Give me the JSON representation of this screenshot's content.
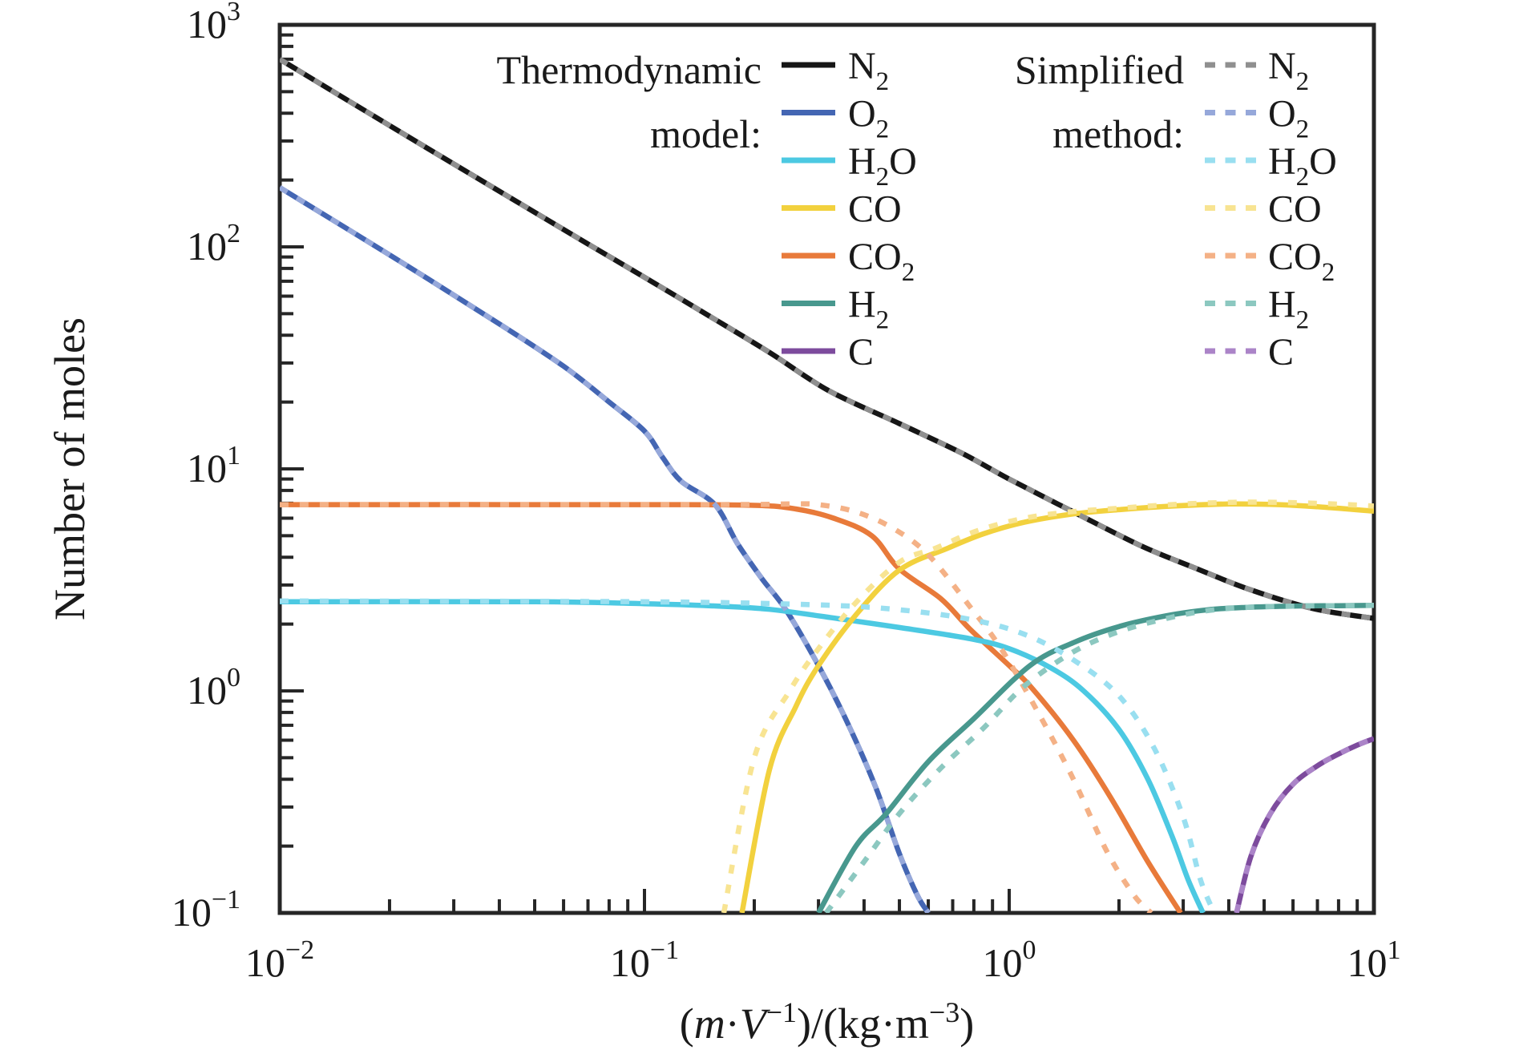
{
  "figure": {
    "background": "#ffffff",
    "axis_color": "#262626",
    "y_axis_title": "Number of moles",
    "x_axis_title_segments": [
      {
        "t": "(",
        "s": "u"
      },
      {
        "t": "m",
        "s": "i"
      },
      {
        "t": "·",
        "s": "u"
      },
      {
        "t": "V",
        "s": "i"
      },
      {
        "t": "−1",
        "s": "sup"
      },
      {
        "t": ")/(",
        "s": "u"
      },
      {
        "t": "kg·m",
        "s": "u"
      },
      {
        "t": "−3",
        "s": "sup"
      },
      {
        "t": ")",
        "s": "u"
      }
    ]
  },
  "legend": {
    "group1_title_line1": "Thermodynamic",
    "group1_title_line2": "model:",
    "group2_title_line1": "Simplified",
    "group2_title_line2": "method:"
  },
  "chart_data": {
    "type": "line",
    "x_scale": "log",
    "y_scale": "log",
    "xlim": [
      0.01,
      10
    ],
    "ylim": [
      0.1,
      1000
    ],
    "x_tick_base": "10",
    "x_tick_exponents": [
      "−2",
      "−1",
      "0",
      "1"
    ],
    "y_tick_base": "10",
    "y_tick_exponents": [
      "3",
      "2",
      "1",
      "0",
      "−1"
    ],
    "xlabel": "(m·V⁻¹)/(kg·m⁻³)",
    "ylabel": "Number of moles",
    "legend_groups": [
      "Thermodynamic model:",
      "Simplified method:"
    ],
    "species": [
      {
        "id": "N2",
        "parts": [
          {
            "t": "N"
          },
          {
            "t": "2",
            "sub": true
          }
        ],
        "solid_color": "#161616",
        "dotted_color": "#8f8f8f"
      },
      {
        "id": "O2",
        "parts": [
          {
            "t": "O"
          },
          {
            "t": "2",
            "sub": true
          }
        ],
        "solid_color": "#4466b3",
        "dotted_color": "#96a8da"
      },
      {
        "id": "H2O",
        "parts": [
          {
            "t": "H"
          },
          {
            "t": "2",
            "sub": true
          },
          {
            "t": "O"
          }
        ],
        "solid_color": "#4cc9e2",
        "dotted_color": "#99dff0"
      },
      {
        "id": "CO",
        "parts": [
          {
            "t": "CO"
          }
        ],
        "solid_color": "#f2d13e",
        "dotted_color": "#f8e492"
      },
      {
        "id": "CO2",
        "parts": [
          {
            "t": "CO"
          },
          {
            "t": "2",
            "sub": true
          }
        ],
        "solid_color": "#e87a3a",
        "dotted_color": "#f4b186"
      },
      {
        "id": "H2",
        "parts": [
          {
            "t": "H"
          },
          {
            "t": "2",
            "sub": true
          }
        ],
        "solid_color": "#48988e",
        "dotted_color": "#8cc8c0"
      },
      {
        "id": "C",
        "parts": [
          {
            "t": "C"
          }
        ],
        "solid_color": "#7d4b9d",
        "dotted_color": "#ab84c8"
      }
    ],
    "series": [
      {
        "species": "N2",
        "variant": "solid",
        "model": "Thermodynamic model",
        "points": [
          [
            0.01,
            700
          ],
          [
            0.02,
            352
          ],
          [
            0.04,
            178
          ],
          [
            0.07,
            103
          ],
          [
            0.1,
            73
          ],
          [
            0.15,
            49
          ],
          [
            0.22,
            33.5
          ],
          [
            0.32,
            22.5
          ],
          [
            0.5,
            16
          ],
          [
            0.74,
            11.8
          ],
          [
            1.0,
            9.0
          ],
          [
            1.5,
            6.4
          ],
          [
            2.3,
            4.5
          ],
          [
            3.2,
            3.6
          ],
          [
            4.6,
            2.85
          ],
          [
            6.8,
            2.35
          ],
          [
            10,
            2.12
          ]
        ]
      },
      {
        "species": "N2",
        "variant": "dotted",
        "model": "Simplified method",
        "points": [
          [
            0.01,
            700
          ],
          [
            0.02,
            352
          ],
          [
            0.04,
            178
          ],
          [
            0.07,
            103
          ],
          [
            0.1,
            73
          ],
          [
            0.15,
            49
          ],
          [
            0.22,
            33.5
          ],
          [
            0.32,
            22.5
          ],
          [
            0.5,
            16
          ],
          [
            0.74,
            11.8
          ],
          [
            1.0,
            9.0
          ],
          [
            1.5,
            6.4
          ],
          [
            2.3,
            4.5
          ],
          [
            3.2,
            3.6
          ],
          [
            4.6,
            2.85
          ],
          [
            6.8,
            2.35
          ],
          [
            10,
            2.12
          ]
        ]
      },
      {
        "species": "O2",
        "variant": "solid",
        "model": "Thermodynamic model",
        "points": [
          [
            0.01,
            185
          ],
          [
            0.02,
            92
          ],
          [
            0.04,
            45
          ],
          [
            0.06,
            29
          ],
          [
            0.08,
            20
          ],
          [
            0.1,
            14.8
          ],
          [
            0.112,
            11.3
          ],
          [
            0.126,
            8.8
          ],
          [
            0.156,
            6.9
          ],
          [
            0.18,
            4.6
          ],
          [
            0.21,
            3.2
          ],
          [
            0.245,
            2.3
          ],
          [
            0.3,
            1.3
          ],
          [
            0.36,
            0.72
          ],
          [
            0.43,
            0.37
          ],
          [
            0.5,
            0.185
          ],
          [
            0.56,
            0.12
          ],
          [
            0.6,
            0.1
          ]
        ]
      },
      {
        "species": "O2",
        "variant": "dotted",
        "model": "Simplified method",
        "points": [
          [
            0.01,
            185
          ],
          [
            0.02,
            92
          ],
          [
            0.04,
            45
          ],
          [
            0.06,
            29
          ],
          [
            0.08,
            20
          ],
          [
            0.1,
            14.8
          ],
          [
            0.112,
            11.3
          ],
          [
            0.126,
            8.8
          ],
          [
            0.156,
            6.9
          ],
          [
            0.18,
            4.6
          ],
          [
            0.21,
            3.2
          ],
          [
            0.245,
            2.3
          ],
          [
            0.3,
            1.3
          ],
          [
            0.36,
            0.72
          ],
          [
            0.43,
            0.37
          ],
          [
            0.5,
            0.185
          ],
          [
            0.56,
            0.12
          ],
          [
            0.6,
            0.1
          ]
        ]
      },
      {
        "species": "H2O",
        "variant": "solid",
        "model": "Thermodynamic model",
        "points": [
          [
            0.01,
            2.52
          ],
          [
            0.05,
            2.52
          ],
          [
            0.1,
            2.47
          ],
          [
            0.15,
            2.42
          ],
          [
            0.22,
            2.33
          ],
          [
            0.35,
            2.1
          ],
          [
            0.5,
            1.93
          ],
          [
            0.78,
            1.72
          ],
          [
            1.0,
            1.55
          ],
          [
            1.3,
            1.27
          ],
          [
            1.6,
            1.0
          ],
          [
            2.0,
            0.67
          ],
          [
            2.4,
            0.4
          ],
          [
            2.8,
            0.22
          ],
          [
            3.1,
            0.14
          ],
          [
            3.4,
            0.1
          ]
        ]
      },
      {
        "species": "H2O",
        "variant": "dotted",
        "model": "Simplified method",
        "points": [
          [
            0.01,
            2.54
          ],
          [
            0.1,
            2.52
          ],
          [
            0.3,
            2.44
          ],
          [
            0.5,
            2.32
          ],
          [
            0.78,
            2.1
          ],
          [
            1.1,
            1.8
          ],
          [
            1.5,
            1.38
          ],
          [
            2.0,
            0.95
          ],
          [
            2.5,
            0.55
          ],
          [
            3.0,
            0.27
          ],
          [
            3.35,
            0.14
          ],
          [
            3.65,
            0.1
          ]
        ]
      },
      {
        "species": "CO",
        "variant": "solid",
        "model": "Thermodynamic model",
        "points": [
          [
            0.185,
            0.1
          ],
          [
            0.22,
            0.44
          ],
          [
            0.26,
            0.85
          ],
          [
            0.3,
            1.3
          ],
          [
            0.38,
            2.2
          ],
          [
            0.5,
            3.5
          ],
          [
            0.68,
            4.4
          ],
          [
            0.85,
            5.1
          ],
          [
            1.1,
            5.75
          ],
          [
            1.48,
            6.25
          ],
          [
            2.0,
            6.55
          ],
          [
            2.8,
            6.8
          ],
          [
            4.0,
            6.95
          ],
          [
            5.5,
            6.9
          ],
          [
            7.5,
            6.7
          ],
          [
            10,
            6.45
          ]
        ]
      },
      {
        "species": "CO",
        "variant": "dotted",
        "model": "Simplified method",
        "points": [
          [
            0.165,
            0.1
          ],
          [
            0.2,
            0.5
          ],
          [
            0.25,
            1.0
          ],
          [
            0.3,
            1.55
          ],
          [
            0.38,
            2.5
          ],
          [
            0.5,
            3.8
          ],
          [
            0.63,
            4.4
          ],
          [
            0.8,
            5.2
          ],
          [
            1.05,
            5.9
          ],
          [
            1.4,
            6.35
          ],
          [
            2.0,
            6.65
          ],
          [
            3.0,
            6.95
          ],
          [
            4.5,
            7.08
          ],
          [
            6.5,
            7.02
          ],
          [
            8.5,
            6.9
          ],
          [
            10,
            6.8
          ]
        ]
      },
      {
        "species": "CO2",
        "variant": "solid",
        "model": "Thermodynamic model",
        "points": [
          [
            0.01,
            6.9
          ],
          [
            0.1,
            6.9
          ],
          [
            0.2,
            6.85
          ],
          [
            0.26,
            6.6
          ],
          [
            0.33,
            6.0
          ],
          [
            0.42,
            5.0
          ],
          [
            0.5,
            3.54
          ],
          [
            0.65,
            2.6
          ],
          [
            0.78,
            1.9
          ],
          [
            1.0,
            1.3
          ],
          [
            1.16,
            1.02
          ],
          [
            1.5,
            0.6
          ],
          [
            1.9,
            0.33
          ],
          [
            2.4,
            0.17
          ],
          [
            2.95,
            0.1
          ]
        ]
      },
      {
        "species": "CO2",
        "variant": "dotted",
        "model": "Simplified method",
        "points": [
          [
            0.01,
            6.9
          ],
          [
            0.15,
            6.9
          ],
          [
            0.25,
            6.95
          ],
          [
            0.3,
            6.9
          ],
          [
            0.38,
            6.4
          ],
          [
            0.48,
            5.4
          ],
          [
            0.6,
            4.1
          ],
          [
            0.78,
            2.4
          ],
          [
            0.95,
            1.55
          ],
          [
            1.2,
            0.8
          ],
          [
            1.5,
            0.4
          ],
          [
            1.85,
            0.19
          ],
          [
            2.2,
            0.12
          ],
          [
            2.45,
            0.1
          ]
        ]
      },
      {
        "species": "H2",
        "variant": "solid",
        "model": "Thermodynamic model",
        "points": [
          [
            0.3,
            0.1
          ],
          [
            0.38,
            0.2
          ],
          [
            0.46,
            0.28
          ],
          [
            0.6,
            0.48
          ],
          [
            0.8,
            0.75
          ],
          [
            1.14,
            1.3
          ],
          [
            1.5,
            1.65
          ],
          [
            2.0,
            1.95
          ],
          [
            2.7,
            2.18
          ],
          [
            3.5,
            2.32
          ],
          [
            4.5,
            2.38
          ],
          [
            6,
            2.41
          ],
          [
            8,
            2.42
          ],
          [
            10,
            2.43
          ]
        ]
      },
      {
        "species": "H2",
        "variant": "dotted",
        "model": "Simplified method",
        "points": [
          [
            0.315,
            0.1
          ],
          [
            0.4,
            0.17
          ],
          [
            0.5,
            0.28
          ],
          [
            0.65,
            0.45
          ],
          [
            0.85,
            0.68
          ],
          [
            1.1,
            1.05
          ],
          [
            1.5,
            1.5
          ],
          [
            2.0,
            1.85
          ],
          [
            2.7,
            2.12
          ],
          [
            3.5,
            2.3
          ],
          [
            4.5,
            2.38
          ],
          [
            6,
            2.41
          ],
          [
            8,
            2.42
          ],
          [
            10,
            2.43
          ]
        ]
      },
      {
        "species": "C",
        "variant": "solid",
        "model": "Thermodynamic model",
        "points": [
          [
            4.2,
            0.1
          ],
          [
            4.6,
            0.18
          ],
          [
            5.2,
            0.28
          ],
          [
            6.0,
            0.38
          ],
          [
            7.0,
            0.46
          ],
          [
            8.0,
            0.52
          ],
          [
            9.0,
            0.57
          ],
          [
            10,
            0.61
          ]
        ]
      },
      {
        "species": "C",
        "variant": "dotted",
        "model": "Simplified method",
        "points": [
          [
            4.2,
            0.1
          ],
          [
            4.6,
            0.18
          ],
          [
            5.2,
            0.28
          ],
          [
            6.0,
            0.38
          ],
          [
            7.0,
            0.46
          ],
          [
            8.0,
            0.52
          ],
          [
            9.0,
            0.57
          ],
          [
            10,
            0.61
          ]
        ]
      }
    ]
  }
}
